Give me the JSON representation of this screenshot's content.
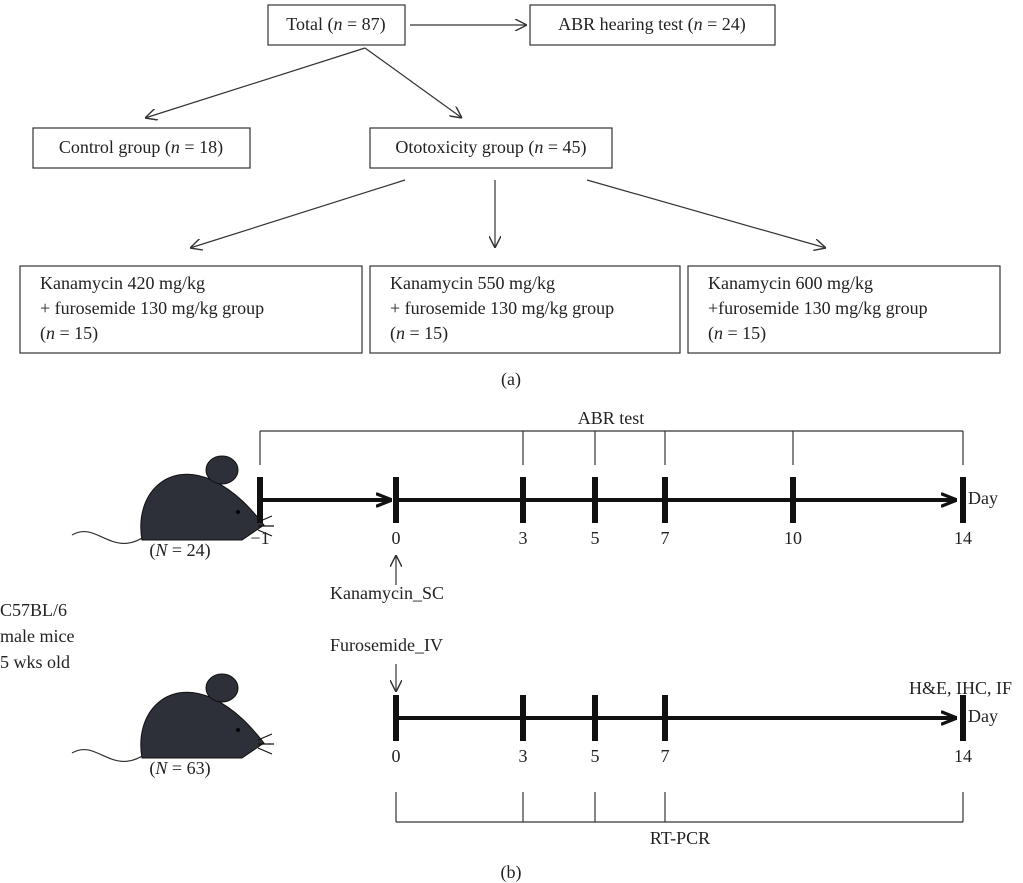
{
  "part_a": {
    "label": "(a)",
    "total": "Total (n = 87)",
    "abr": "ABR hearing test (n = 24)",
    "control": "Control group (n = 18)",
    "ototoxicity": "Ototoxicity group (n = 45)",
    "groups": [
      [
        "Kanamycin 420 mg/kg",
        "+ furosemide 130 mg/kg group",
        "(n = 15)"
      ],
      [
        "Kanamycin 550 mg/kg",
        "+ furosemide 130 mg/kg group",
        "(n = 15)"
      ],
      [
        "Kanamycin 600 mg/kg",
        "+furosemide 130 mg/kg group",
        "(n = 15)"
      ]
    ]
  },
  "part_b": {
    "label": "(b)",
    "strain": [
      "C57BL/6",
      "male mice",
      "5 wks old"
    ],
    "kanamycin": "Kanamycin_SC",
    "furosemide": "Furosemide_IV",
    "timeline_1": {
      "label": "ABR test",
      "ticks": [
        "−1",
        "0",
        "3",
        "5",
        "7",
        "10",
        "14"
      ],
      "unit": "Day",
      "n": "(N = 24)"
    },
    "timeline_2": {
      "label": "RT-PCR",
      "end_label": "H&E, IHC, IF",
      "ticks": [
        "0",
        "3",
        "5",
        "7",
        "14"
      ],
      "unit": "Day",
      "n": "(N = 63)"
    }
  }
}
